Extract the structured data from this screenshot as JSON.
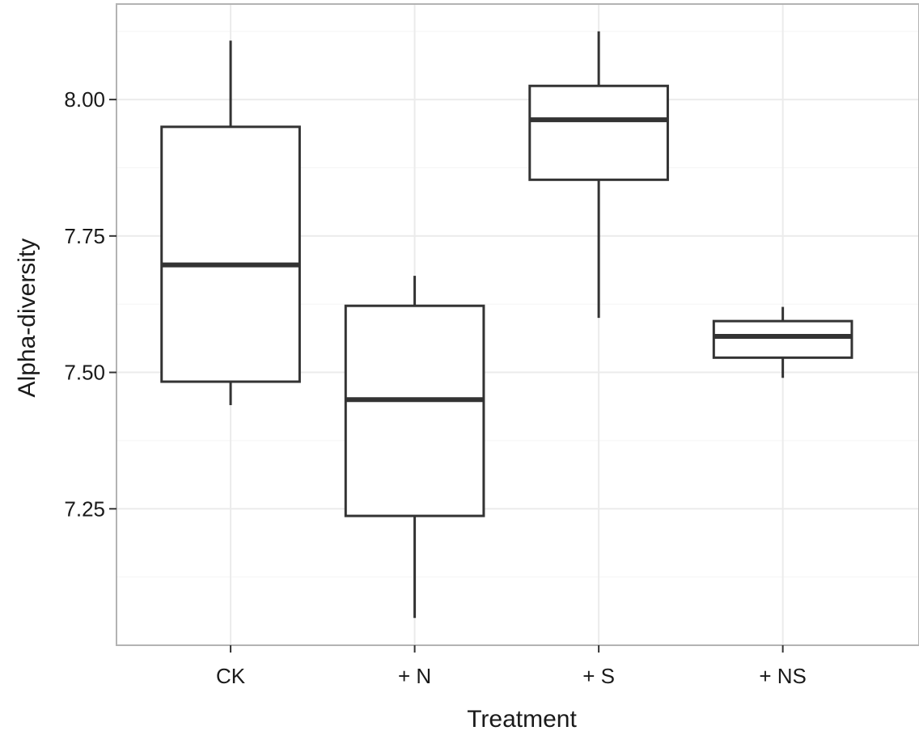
{
  "chart_data": {
    "type": "box",
    "title": "",
    "xlabel": "Treatment",
    "ylabel": "Alpha-diversity",
    "categories": [
      "CK",
      "+ N",
      "+ S",
      "+ NS"
    ],
    "boxes": [
      {
        "category": "CK",
        "min": 7.44,
        "q1": 7.483,
        "median": 7.697,
        "q3": 7.95,
        "max": 8.108
      },
      {
        "category": "+ N",
        "min": 7.05,
        "q1": 7.237,
        "median": 7.45,
        "q3": 7.622,
        "max": 7.677
      },
      {
        "category": "+ S",
        "min": 7.6,
        "q1": 7.853,
        "median": 7.963,
        "q3": 8.025,
        "max": 8.125
      },
      {
        "category": "+ NS",
        "min": 7.49,
        "q1": 7.527,
        "median": 7.566,
        "q3": 7.594,
        "max": 7.62
      }
    ],
    "yticks": [
      7.25,
      7.5,
      7.75,
      8.0
    ],
    "ytick_labels": [
      "7.25",
      "7.50",
      "7.75",
      "8.00"
    ],
    "ylim": [
      7.0,
      8.175
    ],
    "grid": true,
    "colors": {
      "panel_background": "#ffffff",
      "panel_border": "#b3b3b3",
      "grid_major": "#ebebeb",
      "grid_minor": "#f5f5f5",
      "box_stroke": "#333333",
      "tick_mark": "#333333",
      "text": "#1a1a1a"
    }
  }
}
